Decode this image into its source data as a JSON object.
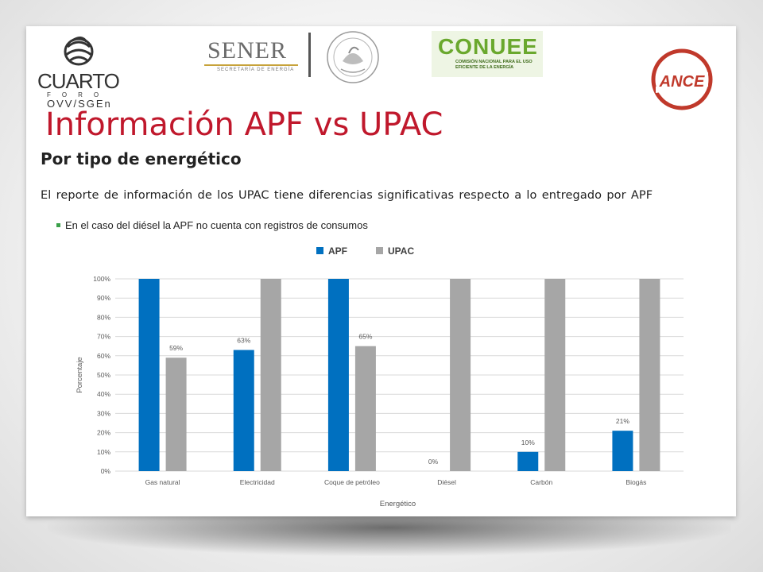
{
  "header": {
    "logo_cuarto_word": "CUARTO",
    "logo_cuarto_foro": "FORO",
    "logo_cuarto_sub": "OVV/SGEn",
    "logo_sener_word": "SENER",
    "logo_sener_sub": "SECRETARÍA DE ENERGÍA",
    "logo_conuee_word": "CONUEE",
    "logo_conuee_sub": "COMISIÓN NACIONAL PARA EL USO EFICIENTE DE LA ENERGÍA",
    "logo_ance_word": "ANCE"
  },
  "title": "Información APF vs UPAC",
  "subtitle": "Por tipo de energético",
  "body_text": "El reporte de información de los UPAC tiene diferencias significativas respecto a lo entregado por APF",
  "bullet": "En el caso del diésel la APF no cuenta con registros de consumos",
  "colors": {
    "title": "#c0182c",
    "apf": "#0070c0",
    "upac": "#a6a6a6"
  },
  "chart_data": {
    "type": "bar",
    "categories": [
      "Gas natural",
      "Electricidad",
      "Coque de petróleo",
      "Diésel",
      "Carbón",
      "Biogás"
    ],
    "series": [
      {
        "name": "APF",
        "values": [
          100,
          63,
          100,
          0,
          10,
          21
        ],
        "data_labels": [
          "",
          "63%",
          "",
          "0%",
          "10%",
          "21%"
        ]
      },
      {
        "name": "UPAC",
        "values": [
          59,
          100,
          65,
          100,
          100,
          100
        ],
        "data_labels": [
          "59%",
          "",
          "65%",
          "",
          "",
          ""
        ]
      }
    ],
    "yticks": [
      "0%",
      "10%",
      "20%",
      "30%",
      "40%",
      "50%",
      "60%",
      "70%",
      "80%",
      "90%",
      "100%"
    ],
    "ylim": [
      0,
      100
    ],
    "xlabel": "Energético",
    "ylabel": "Porcentaje",
    "legend": "top-center",
    "grid": true
  }
}
